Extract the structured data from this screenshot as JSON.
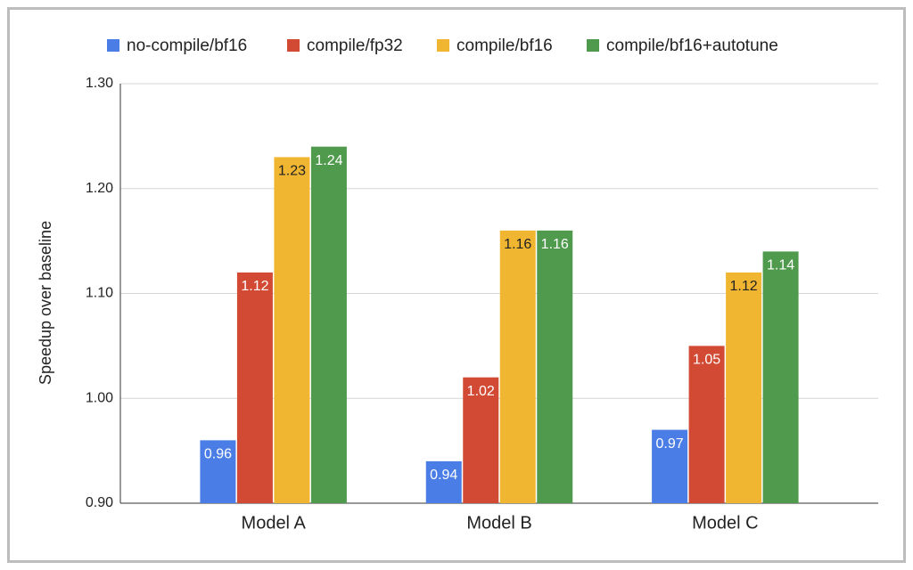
{
  "chart_data": {
    "type": "bar",
    "y_label": "Speedup over baseline",
    "categories": [
      "Model A",
      "Model B",
      "Model C"
    ],
    "series": [
      {
        "name": "no-compile/bf16",
        "color": "#4a7ee6",
        "values": [
          0.96,
          0.94,
          0.97
        ]
      },
      {
        "name": "compile/fp32",
        "color": "#d24a34",
        "values": [
          1.12,
          1.02,
          1.05
        ]
      },
      {
        "name": "compile/bf16",
        "color": "#f0b631",
        "values": [
          1.23,
          1.16,
          1.12
        ]
      },
      {
        "name": "compile/bf16+autotune",
        "color": "#4f9a4d",
        "values": [
          1.24,
          1.16,
          1.14
        ]
      }
    ],
    "ylim": [
      0.9,
      1.3
    ],
    "yticks": [
      {
        "value": 0.9,
        "label": "0.90"
      },
      {
        "value": 1.0,
        "label": "1.00"
      },
      {
        "value": 1.1,
        "label": "1.10"
      },
      {
        "value": 1.2,
        "label": "1.20"
      },
      {
        "value": 1.3,
        "label": "1.30"
      }
    ],
    "grid": true,
    "legend": "top"
  }
}
